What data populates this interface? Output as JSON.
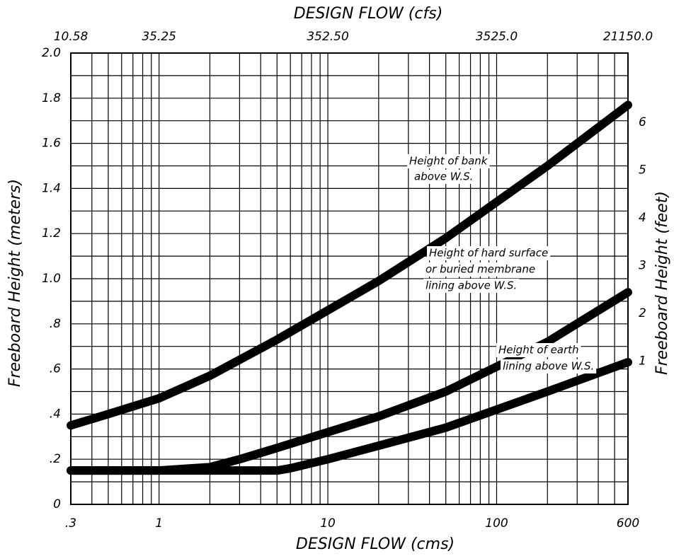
{
  "chart_data": {
    "type": "line",
    "x_label_top": "DESIGN FLOW (cfs)",
    "x_label": "DESIGN FLOW (cms)",
    "y_label": "Freeboard Height (meters)",
    "y2_label": "Freeboard Height (feet)",
    "xscale": "log",
    "xlim": [
      0.3,
      600
    ],
    "xticks": [
      {
        "value": 0.3,
        "label": ".3"
      },
      1,
      10,
      100,
      600
    ],
    "xgrid": [
      0.3,
      0.4,
      0.5,
      0.6,
      0.7,
      0.8,
      0.9,
      1,
      2,
      3,
      4,
      5,
      6,
      7,
      8,
      9,
      10,
      20,
      30,
      40,
      50,
      60,
      70,
      80,
      90,
      100,
      200,
      300,
      400,
      500,
      600
    ],
    "x2lim": [
      10.575,
      21150
    ],
    "x2ticks": [
      10.58,
      35.25,
      {
        "value": 352.5,
        "label": "352.50"
      },
      {
        "value": 3525,
        "label": "3525.0"
      },
      {
        "value": 21150,
        "label": "21150.0"
      }
    ],
    "ylim": [
      0,
      2
    ],
    "yticks": [
      0,
      {
        "value": 0.2,
        "label": ".2"
      },
      {
        "value": 0.4,
        "label": ".4"
      },
      {
        "value": 0.6,
        "label": ".6"
      },
      {
        "value": 0.8,
        "label": ".8"
      },
      {
        "value": 1,
        "label": "1.0"
      },
      1.2,
      1.4,
      1.6,
      1.8,
      {
        "value": 2,
        "label": "2.0"
      }
    ],
    "ygrid": [
      0.1,
      0.2,
      0.3,
      0.4,
      0.5,
      0.6,
      0.7,
      0.8,
      0.9,
      1,
      1.1,
      1.2,
      1.3,
      1.4,
      1.5,
      1.6,
      1.7,
      1.8,
      1.9
    ],
    "y2lim": [
      -2.0,
      7.45
    ],
    "y2ticks": [
      1,
      2,
      3,
      4,
      5,
      6
    ],
    "grid": true,
    "series": [
      {
        "color": "#000000",
        "x": [
          0.3,
          0.5,
          1,
          2,
          5,
          10,
          20,
          50,
          100,
          200,
          600
        ],
        "values": [
          0.35,
          0.4,
          0.47,
          0.57,
          0.73,
          0.86,
          0.99,
          1.18,
          1.34,
          1.5,
          1.77
        ]
      },
      {
        "color": "#000000",
        "x": [
          0.3,
          1,
          2,
          3,
          5,
          10,
          20,
          50,
          100,
          200,
          600
        ],
        "values": [
          0.15,
          0.15,
          0.165,
          0.2,
          0.25,
          0.32,
          0.39,
          0.5,
          0.61,
          0.72,
          0.94
        ]
      },
      {
        "color": "#000000",
        "x": [
          0.3,
          5,
          6,
          10,
          20,
          50,
          100,
          200,
          600
        ],
        "values": [
          0.15,
          0.15,
          0.16,
          0.2,
          0.26,
          0.34,
          0.42,
          0.5,
          0.63
        ]
      }
    ],
    "annotations": [
      {
        "lines": [
          "Height of bank",
          "above W.S."
        ]
      },
      {
        "lines": [
          "Height of hard surface",
          "or buried membrane",
          "lining above W.S."
        ]
      },
      {
        "lines": [
          "Height of earth",
          "lining above W.S."
        ]
      }
    ]
  }
}
